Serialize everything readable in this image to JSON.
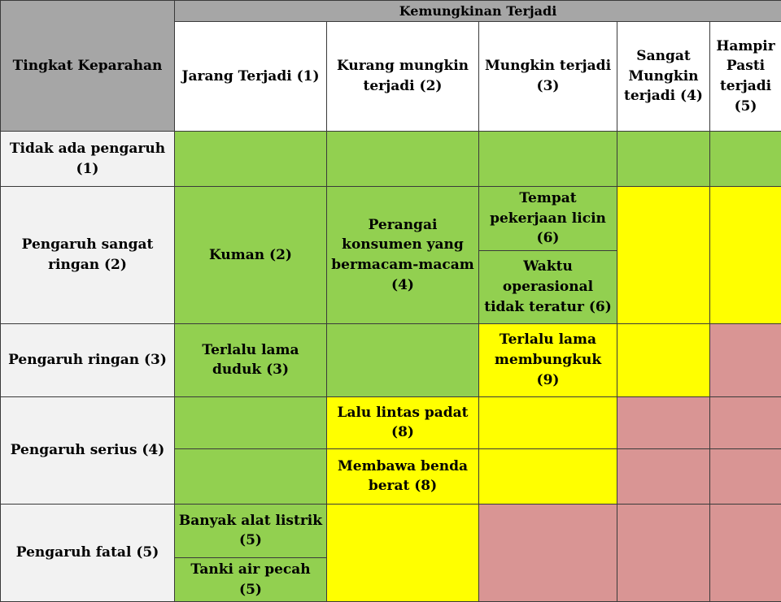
{
  "header": {
    "severity_title": "Tingkat Keparahan",
    "likelihood_title": "Kemungkinan Terjadi",
    "likelihood_levels": [
      "Jarang Terjadi (1)",
      "Kurang mungkin terjadi (2)",
      "Mungkin terjadi (3)",
      "Sangat Mungkin terjadi (4)",
      "Hampir Pasti terjadi (5)"
    ]
  },
  "severity_levels": [
    "Tidak ada pengaruh (1)",
    "Pengaruh sangat ringan (2)",
    "Pengaruh ringan (3)",
    "Pengaruh serius  (4)",
    "Pengaruh fatal (5)"
  ],
  "hazards": {
    "kuman": "Kuman (2)",
    "perangai": "Perangai konsumen yang bermacam-macam (4)",
    "tempat_licin": "Tempat pekerjaan licin (6)",
    "waktu_operasional": "Waktu operasional tidak teratur (6)",
    "lama_duduk": "Terlalu lama duduk (3)",
    "lama_membungkuk": "Terlalu lama membungkuk (9)",
    "lalu_lintas": "Lalu lintas padat (8)",
    "benda_berat": "Membawa benda berat (8)",
    "alat_listrik": "Banyak alat listrik (5)",
    "tanki_air": "Tanki air pecah (5)"
  },
  "colors": {
    "low_risk": "#92d050",
    "medium_risk": "#ffff00",
    "high_risk": "#d99594",
    "header_gray": "#a6a6a6",
    "row_label_bg": "#f2f2f2"
  }
}
